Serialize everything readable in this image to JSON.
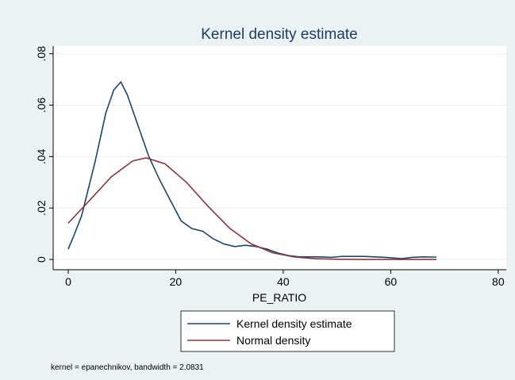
{
  "chart_data": {
    "type": "line",
    "title": "Kernel density estimate",
    "xlabel": "PE_RATIO",
    "note": "kernel = epanechnikov, bandwidth = 2.0831",
    "xlim": [
      -2.8,
      81.5
    ],
    "xticks": [
      0,
      20,
      40,
      60,
      80
    ],
    "ylim": [
      -0.004,
      0.083
    ],
    "yticks": [
      0,
      {
        "value": 0.02,
        "label": ".02"
      },
      {
        "value": 0.04,
        "label": ".04"
      },
      {
        "value": 0.06,
        "label": ".06"
      },
      {
        "value": 0.08,
        "label": ".08"
      }
    ],
    "grid": true,
    "series": [
      {
        "name": "Kernel density estimate",
        "color": "#1a476f",
        "x": [
          0,
          1,
          2.5,
          5,
          7,
          8.5,
          9.8,
          11,
          13,
          15,
          17,
          19,
          21,
          23,
          25,
          27,
          29,
          31,
          33,
          35,
          37,
          39,
          41,
          43,
          45,
          47,
          49,
          51,
          53,
          55,
          57,
          59,
          61,
          62,
          64,
          66,
          68.5
        ],
        "values": [
          0.004,
          0.009,
          0.017,
          0.038,
          0.057,
          0.066,
          0.069,
          0.064,
          0.052,
          0.04,
          0.031,
          0.023,
          0.015,
          0.012,
          0.011,
          0.008,
          0.006,
          0.005,
          0.0055,
          0.005,
          0.004,
          0.0025,
          0.0015,
          0.001,
          0.001,
          0.001,
          0.0008,
          0.0012,
          0.0012,
          0.0012,
          0.001,
          0.0008,
          0.0005,
          0.0003,
          0.0008,
          0.001,
          0.0009
        ]
      },
      {
        "name": "Normal density",
        "color": "#90353b",
        "x": [
          0,
          4,
          8,
          12,
          14.5,
          18,
          22,
          26,
          30,
          34,
          38,
          42,
          46,
          50,
          55,
          60,
          65,
          68.5
        ],
        "values": [
          0.0141,
          0.023,
          0.0321,
          0.0383,
          0.0395,
          0.0372,
          0.03,
          0.0207,
          0.0122,
          0.0061,
          0.0026,
          0.00097,
          0.0003,
          8e-05,
          0,
          0,
          0,
          0
        ]
      }
    ]
  }
}
